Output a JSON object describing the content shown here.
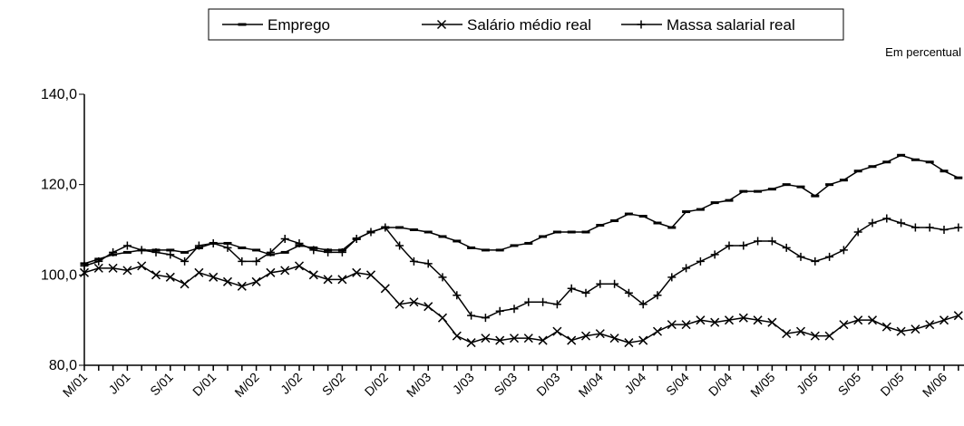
{
  "chart_data": {
    "type": "line",
    "note": "Em   percentual",
    "categories": [
      "M/01",
      null,
      null,
      "J/01",
      null,
      null,
      "S/01",
      null,
      null,
      "D/01",
      null,
      null,
      "M/02",
      null,
      null,
      "J/02",
      null,
      null,
      "S/02",
      null,
      null,
      "D/02",
      null,
      null,
      "M/03",
      null,
      null,
      "J/03",
      null,
      null,
      "S/03",
      null,
      null,
      "D/03",
      null,
      null,
      "M/04",
      null,
      null,
      "J/04",
      null,
      null,
      "S/04",
      null,
      null,
      "D/04",
      null,
      null,
      "M/05",
      null,
      null,
      "J/05",
      null,
      null,
      "S/05",
      null,
      null,
      "D/05",
      null,
      null,
      "M/06",
      null
    ],
    "series": [
      {
        "name": "Emprego",
        "color": "#000000",
        "marker": "dash",
        "values": [
          102.5,
          103.5,
          104.5,
          105,
          105.5,
          105.5,
          105.5,
          105,
          106,
          107,
          107,
          106,
          105.5,
          104.5,
          105,
          106.5,
          106,
          105.5,
          105.5,
          108,
          109.5,
          110.5,
          110.5,
          110,
          109.5,
          108.5,
          107.5,
          106,
          105.5,
          105.5,
          106.5,
          107,
          108.5,
          109.5,
          109.5,
          109.5,
          111,
          112,
          113.5,
          113,
          111.5,
          110.5,
          114,
          114.5,
          116,
          116.5,
          118.5,
          118.5,
          119,
          120,
          119.5,
          117.5,
          120,
          121,
          123,
          124,
          125,
          126.5,
          125.5,
          125,
          123,
          121.5
        ]
      },
      {
        "name": "Salário médio real",
        "color": "#000000",
        "marker": "x",
        "values": [
          100.5,
          101.5,
          101.5,
          101,
          102,
          100,
          99.5,
          98,
          100.5,
          99.5,
          98.5,
          97.5,
          98.5,
          100.5,
          101,
          102,
          100,
          99,
          99,
          100.5,
          100,
          97,
          93.5,
          94,
          93,
          90.5,
          86.5,
          85,
          86,
          85.5,
          86,
          86,
          85.5,
          87.5,
          85.5,
          86.5,
          87,
          86,
          85,
          85.5,
          87.5,
          89,
          89,
          90,
          89.5,
          90,
          90.5,
          90,
          89.5,
          87,
          87.5,
          86.5,
          86.5,
          89,
          90,
          90,
          88.5,
          87.5,
          88,
          89,
          90,
          91
        ]
      },
      {
        "name": "Massa salarial real",
        "color": "#000000",
        "marker": "plus",
        "values": [
          102,
          103,
          105,
          106.5,
          105.5,
          105,
          104.5,
          103,
          106.5,
          107,
          106,
          103,
          103,
          105,
          108,
          107,
          105.5,
          105,
          105,
          108,
          109.5,
          110.5,
          106.5,
          103,
          102.5,
          99.5,
          95.5,
          91,
          90.5,
          92,
          92.5,
          94,
          94,
          93.5,
          97,
          96,
          98,
          98,
          96,
          93.5,
          95.5,
          99.5,
          101.5,
          103,
          104.5,
          106.5,
          106.5,
          107.5,
          107.5,
          106,
          104,
          103,
          104,
          105.5,
          109.5,
          111.5,
          112.5,
          111.5,
          110.5,
          110.5,
          110,
          110.5
        ]
      }
    ],
    "ylim": [
      80,
      140
    ],
    "yticks": [
      {
        "value": 80,
        "label": "80,0"
      },
      {
        "value": 100,
        "label": "100,0"
      },
      {
        "value": 120,
        "label": "120,0"
      },
      {
        "value": 140,
        "label": "140,0"
      }
    ],
    "grid": false
  }
}
